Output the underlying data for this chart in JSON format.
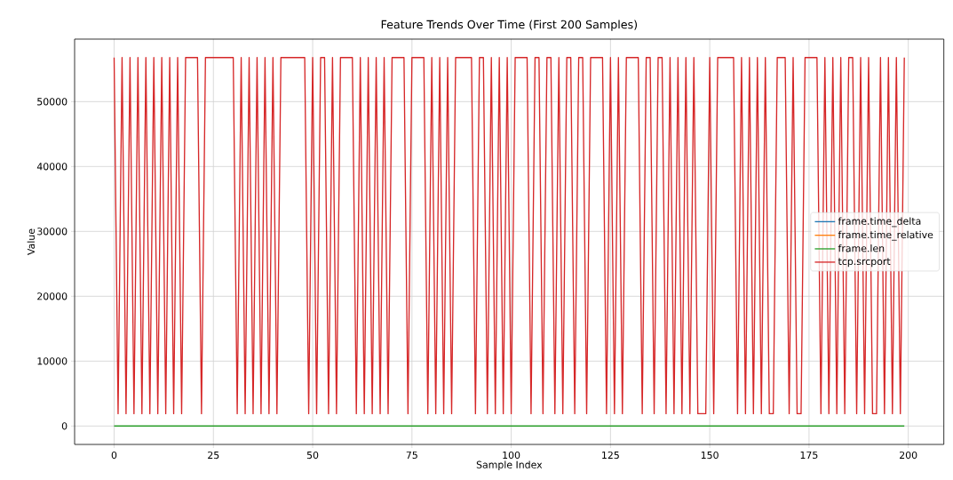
{
  "chart_data": {
    "type": "line",
    "title": "Feature Trends Over Time (First 200 Samples)",
    "xlabel": "Sample Index",
    "ylabel": "Value",
    "x": [
      0,
      1,
      2,
      3,
      4,
      5,
      6,
      7,
      8,
      9,
      10,
      11,
      12,
      13,
      14,
      15,
      16,
      17,
      18,
      19,
      20,
      21,
      22,
      23,
      24,
      25,
      26,
      27,
      28,
      29,
      30,
      31,
      32,
      33,
      34,
      35,
      36,
      37,
      38,
      39,
      40,
      41,
      42,
      43,
      44,
      45,
      46,
      47,
      48,
      49,
      50,
      51,
      52,
      53,
      54,
      55,
      56,
      57,
      58,
      59,
      60,
      61,
      62,
      63,
      64,
      65,
      66,
      67,
      68,
      69,
      70,
      71,
      72,
      73,
      74,
      75,
      76,
      77,
      78,
      79,
      80,
      81,
      82,
      83,
      84,
      85,
      86,
      87,
      88,
      89,
      90,
      91,
      92,
      93,
      94,
      95,
      96,
      97,
      98,
      99,
      100,
      101,
      102,
      103,
      104,
      105,
      106,
      107,
      108,
      109,
      110,
      111,
      112,
      113,
      114,
      115,
      116,
      117,
      118,
      119,
      120,
      121,
      122,
      123,
      124,
      125,
      126,
      127,
      128,
      129,
      130,
      131,
      132,
      133,
      134,
      135,
      136,
      137,
      138,
      139,
      140,
      141,
      142,
      143,
      144,
      145,
      146,
      147,
      148,
      149,
      150,
      151,
      152,
      153,
      154,
      155,
      156,
      157,
      158,
      159,
      160,
      161,
      162,
      163,
      164,
      165,
      166,
      167,
      168,
      169,
      170,
      171,
      172,
      173,
      174,
      175,
      176,
      177,
      178,
      179,
      180,
      181,
      182,
      183,
      184,
      185,
      186,
      187,
      188,
      189,
      190,
      191,
      192,
      193,
      194,
      195,
      196,
      197,
      198,
      199
    ],
    "series": [
      {
        "name": "frame.time_delta",
        "color": "#1f77b4",
        "values": [
          null,
          null,
          null,
          null,
          null,
          null,
          null,
          null,
          null,
          null,
          null,
          null,
          null,
          null,
          null,
          null,
          null,
          null,
          null,
          null,
          null,
          null,
          null,
          null,
          null,
          null,
          null,
          null,
          null,
          null,
          null,
          null,
          null,
          null,
          null,
          null,
          null,
          null,
          null,
          null,
          null,
          null,
          null,
          null,
          null,
          null,
          null,
          null,
          null,
          null,
          null,
          null,
          null,
          null,
          null,
          null,
          null,
          null,
          null,
          null,
          null,
          null,
          null,
          null,
          null,
          null,
          null,
          null,
          null,
          null,
          null,
          null,
          null,
          null,
          null,
          null,
          null,
          null,
          null,
          null,
          null,
          null,
          null,
          null,
          null,
          null,
          null,
          null,
          null,
          null,
          null,
          null,
          null,
          null,
          null,
          null,
          null,
          null,
          null,
          null,
          null,
          null,
          null,
          null,
          null,
          null,
          null,
          null,
          null,
          null,
          null,
          null,
          null,
          null,
          null,
          null,
          null,
          null,
          null,
          null,
          null,
          null,
          null,
          null,
          null,
          null,
          null,
          null,
          null,
          null,
          null,
          null,
          null,
          null,
          null,
          null,
          null,
          null,
          null,
          null,
          null,
          null,
          null,
          null,
          null,
          null,
          null,
          null,
          null,
          null,
          null,
          null,
          null,
          null,
          null,
          null,
          null,
          null,
          null,
          null,
          null,
          null,
          null,
          null,
          null,
          null,
          null,
          null,
          null,
          null,
          null,
          null,
          null,
          null,
          null,
          null,
          null,
          null,
          null,
          null,
          null,
          null,
          null,
          null,
          null,
          null,
          null,
          null,
          null,
          null,
          null,
          null,
          null,
          null,
          null,
          null,
          null,
          null,
          null,
          null
        ]
      },
      {
        "name": "frame.time_relative",
        "color": "#ff7f0e",
        "values": [
          null,
          null,
          null,
          null,
          null,
          null,
          null,
          null,
          null,
          null,
          null,
          null,
          null,
          null,
          null,
          null,
          null,
          null,
          null,
          null,
          null,
          null,
          null,
          null,
          null,
          null,
          null,
          null,
          null,
          null,
          null,
          null,
          null,
          null,
          null,
          null,
          null,
          null,
          null,
          null,
          null,
          null,
          null,
          null,
          null,
          null,
          null,
          null,
          null,
          null,
          null,
          null,
          null,
          null,
          null,
          null,
          null,
          null,
          null,
          null,
          null,
          null,
          null,
          null,
          null,
          null,
          null,
          null,
          null,
          null,
          null,
          null,
          null,
          null,
          null,
          null,
          null,
          null,
          null,
          null,
          null,
          null,
          null,
          null,
          null,
          null,
          null,
          null,
          null,
          null,
          null,
          null,
          null,
          null,
          null,
          null,
          null,
          null,
          null,
          null,
          null,
          null,
          null,
          null,
          null,
          null,
          null,
          null,
          null,
          null,
          null,
          null,
          null,
          null,
          null,
          null,
          null,
          null,
          null,
          null,
          null,
          null,
          null,
          null,
          null,
          null,
          null,
          null,
          null,
          null,
          null,
          null,
          null,
          null,
          null,
          null,
          null,
          null,
          null,
          null,
          null,
          null,
          null,
          null,
          null,
          null,
          null,
          null,
          null,
          null,
          null,
          null,
          null,
          null,
          null,
          null,
          null,
          null,
          null,
          null,
          null,
          null,
          null,
          null,
          null,
          null,
          null,
          null,
          null,
          null,
          null,
          null,
          null,
          null,
          null,
          null,
          null,
          null,
          null,
          null,
          null,
          null,
          null,
          null,
          null,
          null,
          null,
          null,
          null,
          null,
          null,
          null,
          null,
          null,
          null,
          null,
          null,
          null,
          null,
          null
        ]
      },
      {
        "name": "frame.len",
        "color": "#2ca02c",
        "x": [
          0,
          199
        ],
        "values": [
          0,
          0
        ]
      },
      {
        "name": "tcp.srcport",
        "color": "#d62728",
        "values": [
          56800,
          1900,
          56800,
          1900,
          56800,
          1900,
          56800,
          1900,
          56800,
          1900,
          56800,
          1900,
          56800,
          1900,
          56800,
          1900,
          56800,
          1900,
          56800,
          56800,
          56800,
          56800,
          1900,
          56800,
          56800,
          56800,
          56800,
          56800,
          56800,
          56800,
          56800,
          1900,
          56800,
          1900,
          56800,
          1900,
          56800,
          1900,
          56800,
          1900,
          56800,
          1900,
          56800,
          56800,
          56800,
          56800,
          56800,
          56800,
          56800,
          1900,
          56800,
          1900,
          56800,
          56800,
          1900,
          56800,
          1900,
          56800,
          56800,
          56800,
          56800,
          1900,
          56800,
          1900,
          56800,
          1900,
          56800,
          1900,
          56800,
          1900,
          56800,
          56800,
          56800,
          56800,
          1900,
          56800,
          56800,
          56800,
          56800,
          1900,
          56800,
          1900,
          56800,
          1900,
          56800,
          1900,
          56800,
          56800,
          56800,
          56800,
          56800,
          1900,
          56800,
          56800,
          1900,
          56800,
          1900,
          56800,
          1900,
          56800,
          1900,
          56800,
          56800,
          56800,
          56800,
          1900,
          56800,
          56800,
          1900,
          56800,
          56800,
          1900,
          56800,
          1900,
          56800,
          56800,
          1900,
          56800,
          56800,
          1900,
          56800,
          56800,
          56800,
          56800,
          1900,
          56800,
          1900,
          56800,
          1900,
          56800,
          56800,
          56800,
          56800,
          1900,
          56800,
          56800,
          1900,
          56800,
          56800,
          1900,
          56800,
          1900,
          56800,
          1900,
          56800,
          1900,
          56800,
          1900,
          1900,
          1900,
          56800,
          1900,
          56800,
          56800,
          56800,
          56800,
          56800,
          1900,
          56800,
          1900,
          56800,
          1900,
          56800,
          1900,
          56800,
          1900,
          1900,
          56800,
          56800,
          56800,
          1900,
          56800,
          1900,
          1900,
          56800,
          56800,
          56800,
          56800,
          1900,
          56800,
          1900,
          56800,
          1900,
          56800,
          1900,
          56800,
          56800,
          1900,
          56800,
          1900,
          56800,
          1900,
          1900,
          56800,
          1900,
          56800,
          1900,
          56800,
          1900,
          56800
        ]
      }
    ],
    "xlim": [
      -9.95,
      208.95
    ],
    "ylim": [
      -2840,
      59640
    ],
    "xticks": [
      0,
      25,
      50,
      75,
      100,
      125,
      150,
      175,
      200
    ],
    "yticks": [
      0,
      10000,
      20000,
      30000,
      40000,
      50000
    ],
    "grid": true,
    "legend": "right",
    "line_style": "solid",
    "marker": "none"
  }
}
